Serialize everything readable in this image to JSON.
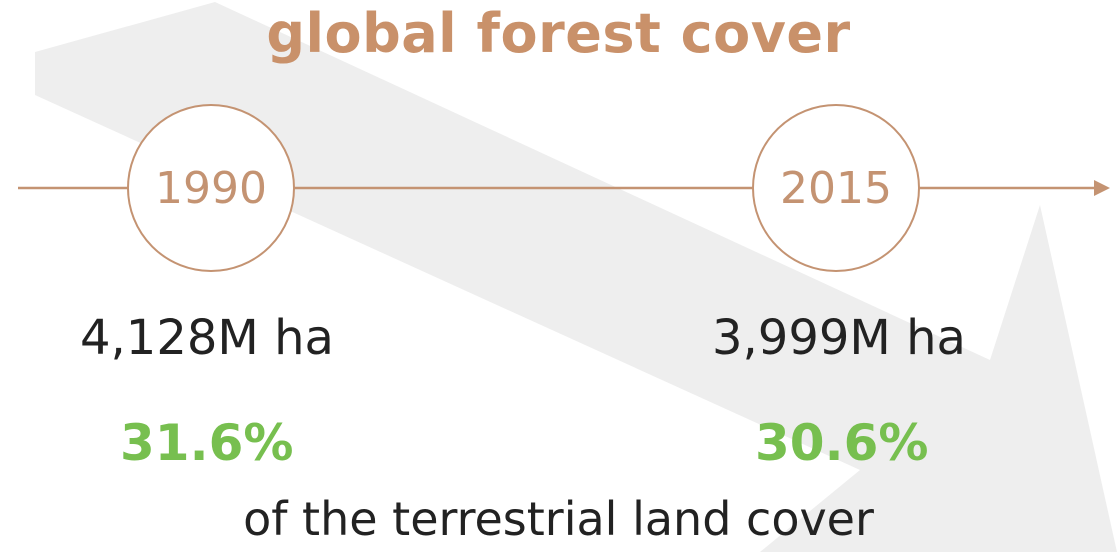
{
  "title": "global forest cover",
  "timeline": [
    {
      "year": "1990",
      "area": "4,128M ha",
      "share": "31.6%"
    },
    {
      "year": "2015",
      "area": "3,999M ha",
      "share": "30.6%"
    }
  ],
  "caption": "of the terrestrial land cover",
  "colors": {
    "title": "#c9916a",
    "timeline": "#c49372",
    "percentage": "#77bf4f",
    "text": "#222222",
    "background_arrow": "#eeeeee"
  }
}
